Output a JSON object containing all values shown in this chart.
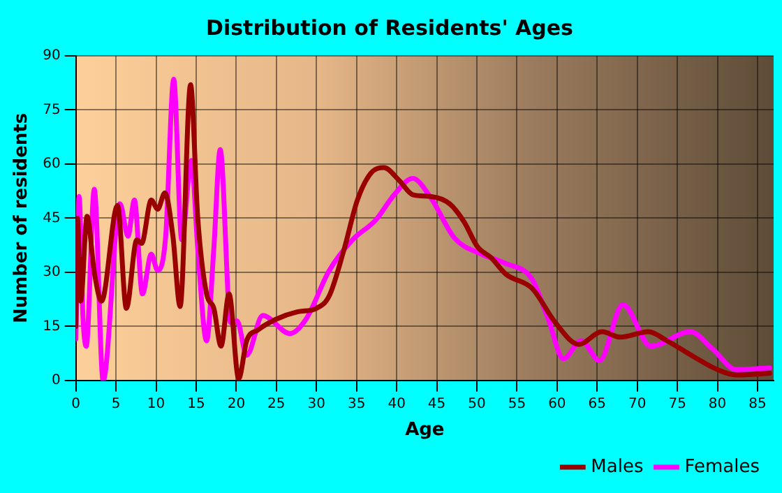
{
  "chart_data": {
    "type": "line",
    "title": "Distribution of Residents' Ages",
    "xlabel": "Age",
    "ylabel": "Number of residents",
    "xlim": [
      0,
      87
    ],
    "xticks": [
      0,
      5,
      10,
      15,
      20,
      25,
      30,
      35,
      40,
      45,
      50,
      55,
      60,
      65,
      70,
      75,
      80,
      85
    ],
    "ylim": [
      0,
      90
    ],
    "yticks": [
      0,
      15,
      30,
      45,
      60,
      75,
      90
    ],
    "grid": true,
    "legend": "bottom",
    "marker": "none",
    "line_style": "solid",
    "series": [
      {
        "name": "Males",
        "color": "#990000",
        "x": [
          0,
          0.2,
          0.6,
          1.4,
          2.3,
          3.2,
          5.2,
          6.3,
          7.6,
          8.2,
          9.4,
          10.2,
          11.1,
          12.1,
          13,
          14.3,
          15.2,
          16.3,
          17.2,
          18.1,
          19.1,
          20.3,
          21.3,
          22.7,
          25,
          27.6,
          30,
          31.6,
          33.4,
          35.1,
          36.8,
          38.4,
          40.3,
          42,
          44.3,
          46.6,
          48.4,
          50.1,
          51.8,
          53.6,
          56.9,
          59.8,
          62.7,
          65.6,
          67.9,
          71.4,
          73.7,
          77.1,
          80,
          82.3,
          86.5
        ],
        "values": [
          15,
          45,
          22,
          45.5,
          30,
          22,
          48.5,
          20,
          39,
          38,
          50,
          47.5,
          52,
          40,
          20.5,
          82,
          45,
          24,
          20,
          9.5,
          24,
          0.5,
          11,
          14,
          17,
          19,
          20,
          23.5,
          36,
          50,
          57.5,
          59,
          55.5,
          51.5,
          51,
          49,
          44,
          37,
          34,
          29.5,
          25.5,
          16,
          10,
          13.5,
          12,
          13.5,
          11,
          6.5,
          3,
          1.5,
          2
        ]
      },
      {
        "name": "Females",
        "color": "#ff00ff",
        "x": [
          0,
          0.4,
          0.9,
          1.3,
          2.3,
          3.4,
          5.5,
          6.5,
          7.3,
          8.3,
          9.4,
          10.2,
          11.2,
          12.2,
          13.2,
          14.4,
          15.2,
          16.3,
          17.2,
          18,
          19.3,
          20.1,
          21.3,
          23.3,
          26.7,
          28.7,
          31.6,
          34.5,
          37.4,
          39.7,
          42,
          44.3,
          47.2,
          50.6,
          53.5,
          56.9,
          58.9,
          60.8,
          63,
          65.3,
          68.2,
          71.7,
          76.6,
          79.5,
          82.3,
          86.5
        ],
        "values": [
          11.5,
          51,
          17,
          9.5,
          53,
          0,
          49,
          40,
          50,
          24,
          35,
          30.5,
          40,
          83.5,
          39,
          61,
          36.5,
          11,
          36.5,
          64,
          16,
          16.5,
          7,
          18,
          13,
          17,
          30.5,
          39,
          44.5,
          51.5,
          56,
          50.5,
          39.5,
          35,
          32.5,
          28,
          17,
          6,
          11,
          5.5,
          21,
          9.5,
          13.5,
          8.5,
          3,
          3.5
        ]
      }
    ]
  }
}
